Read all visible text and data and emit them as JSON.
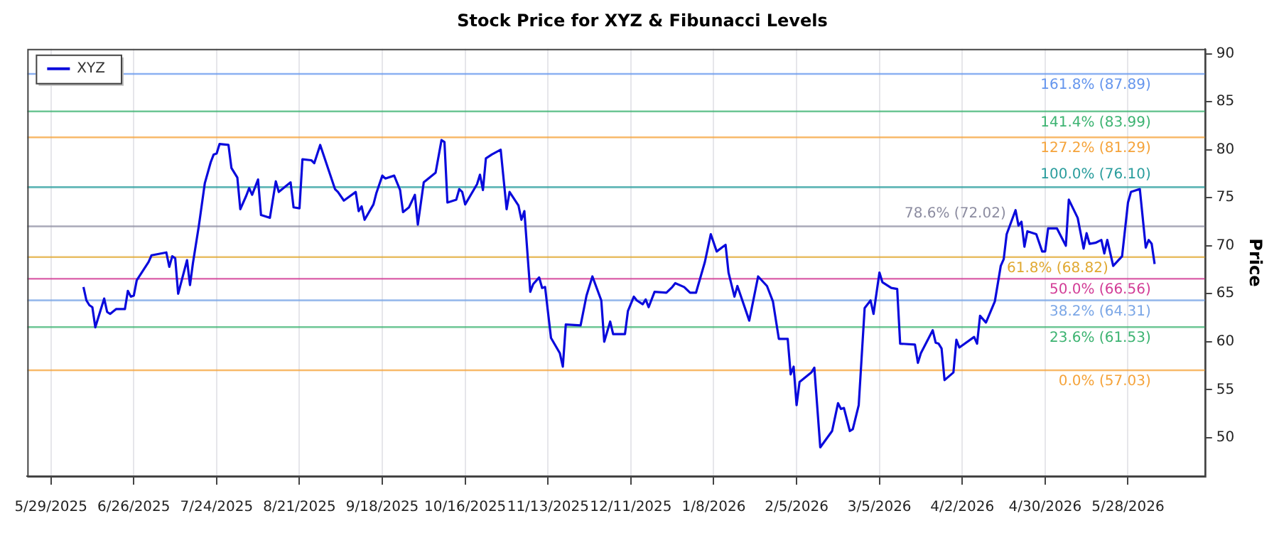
{
  "chart_data": {
    "type": "line",
    "title": "Stock Price for XYZ & Fibunacci Levels",
    "ylabel": "Price",
    "xlim": [
      "2025-05-21",
      "2026-06-23"
    ],
    "xticks": [
      {
        "value": "2025-05-29",
        "label": "5/29/2025"
      },
      {
        "value": "2025-06-26",
        "label": "6/26/2025"
      },
      {
        "value": "2025-07-24",
        "label": "7/24/2025"
      },
      {
        "value": "2025-08-21",
        "label": "8/21/2025"
      },
      {
        "value": "2025-09-18",
        "label": "9/18/2025"
      },
      {
        "value": "2025-10-16",
        "label": "10/16/2025"
      },
      {
        "value": "2025-11-13",
        "label": "11/13/2025"
      },
      {
        "value": "2025-12-11",
        "label": "12/11/2025"
      },
      {
        "value": "2026-01-08",
        "label": "1/8/2026"
      },
      {
        "value": "2026-02-05",
        "label": "2/5/2026"
      },
      {
        "value": "2026-03-05",
        "label": "3/5/2026"
      },
      {
        "value": "2026-04-02",
        "label": "4/2/2026"
      },
      {
        "value": "2026-04-30",
        "label": "4/30/2026"
      },
      {
        "value": "2026-05-28",
        "label": "5/28/2026"
      }
    ],
    "ylim": [
      46,
      90.5
    ],
    "yticks": [
      50,
      55,
      60,
      65,
      70,
      75,
      80,
      85,
      90
    ],
    "grid": "x",
    "legend": "top left",
    "marker": "none",
    "line_style": "solid",
    "x": [
      "2025-06-09",
      "2025-06-10",
      "2025-06-11",
      "2025-06-12",
      "2025-06-13",
      "2025-06-16",
      "2025-06-17",
      "2025-06-18",
      "2025-06-20",
      "2025-06-23",
      "2025-06-24",
      "2025-06-25",
      "2025-06-26",
      "2025-06-27",
      "2025-07-01",
      "2025-07-02",
      "2025-07-07",
      "2025-07-08",
      "2025-07-09",
      "2025-07-10",
      "2025-07-11",
      "2025-07-14",
      "2025-07-15",
      "2025-07-16",
      "2025-07-18",
      "2025-07-20",
      "2025-07-22",
      "2025-07-23",
      "2025-07-24",
      "2025-07-25",
      "2025-07-28",
      "2025-07-29",
      "2025-07-31",
      "2025-08-01",
      "2025-08-03",
      "2025-08-04",
      "2025-08-05",
      "2025-08-07",
      "2025-08-08",
      "2025-08-11",
      "2025-08-13",
      "2025-08-14",
      "2025-08-18",
      "2025-08-19",
      "2025-08-21",
      "2025-08-22",
      "2025-08-25",
      "2025-08-26",
      "2025-08-28",
      "2025-09-02",
      "2025-09-03",
      "2025-09-05",
      "2025-09-09",
      "2025-09-10",
      "2025-09-11",
      "2025-09-12",
      "2025-09-15",
      "2025-09-16",
      "2025-09-18",
      "2025-09-19",
      "2025-09-22",
      "2025-09-24",
      "2025-09-25",
      "2025-09-27",
      "2025-09-29",
      "2025-09-30",
      "2025-10-02",
      "2025-10-06",
      "2025-10-08",
      "2025-10-09",
      "2025-10-10",
      "2025-10-13",
      "2025-10-14",
      "2025-10-15",
      "2025-10-16",
      "2025-10-20",
      "2025-10-21",
      "2025-10-22",
      "2025-10-23",
      "2025-10-25",
      "2025-10-28",
      "2025-10-30",
      "2025-10-31",
      "2025-11-03",
      "2025-11-04",
      "2025-11-05",
      "2025-11-07",
      "2025-11-08",
      "2025-11-10",
      "2025-11-11",
      "2025-11-12",
      "2025-11-14",
      "2025-11-17",
      "2025-11-18",
      "2025-11-19",
      "2025-11-24",
      "2025-11-26",
      "2025-11-28",
      "2025-12-01",
      "2025-12-02",
      "2025-12-04",
      "2025-12-05",
      "2025-12-09",
      "2025-12-10",
      "2025-12-12",
      "2025-12-13",
      "2025-12-15",
      "2025-12-16",
      "2025-12-17",
      "2025-12-19",
      "2025-12-23",
      "2025-12-25",
      "2025-12-26",
      "2025-12-29",
      "2025-12-31",
      "2026-01-02",
      "2026-01-05",
      "2026-01-07",
      "2026-01-09",
      "2026-01-12",
      "2026-01-13",
      "2026-01-15",
      "2026-01-16",
      "2026-01-20",
      "2026-01-23",
      "2026-01-26",
      "2026-01-28",
      "2026-01-30",
      "2026-02-02",
      "2026-02-03",
      "2026-02-04",
      "2026-02-05",
      "2026-02-06",
      "2026-02-10",
      "2026-02-11",
      "2026-02-13",
      "2026-02-17",
      "2026-02-19",
      "2026-02-20",
      "2026-02-21",
      "2026-02-23",
      "2026-02-24",
      "2026-02-26",
      "2026-02-28",
      "2026-03-02",
      "2026-03-03",
      "2026-03-05",
      "2026-03-06",
      "2026-03-09",
      "2026-03-11",
      "2026-03-12",
      "2026-03-17",
      "2026-03-18",
      "2026-03-19",
      "2026-03-23",
      "2026-03-24",
      "2026-03-25",
      "2026-03-26",
      "2026-03-27",
      "2026-03-30",
      "2026-03-31",
      "2026-04-01",
      "2026-04-06",
      "2026-04-07",
      "2026-04-08",
      "2026-04-10",
      "2026-04-13",
      "2026-04-15",
      "2026-04-16",
      "2026-04-17",
      "2026-04-20",
      "2026-04-21",
      "2026-04-22",
      "2026-04-23",
      "2026-04-24",
      "2026-04-27",
      "2026-04-29",
      "2026-04-30",
      "2026-05-01",
      "2026-05-04",
      "2026-05-07",
      "2026-05-08",
      "2026-05-11",
      "2026-05-13",
      "2026-05-14",
      "2026-05-15",
      "2026-05-17",
      "2026-05-19",
      "2026-05-20",
      "2026-05-21",
      "2026-05-23",
      "2026-05-26",
      "2026-05-28",
      "2026-05-29",
      "2026-06-01",
      "2026-06-03",
      "2026-06-04",
      "2026-06-05",
      "2026-06-06"
    ],
    "series": [
      {
        "name": "XYZ",
        "color": "#0a0adc",
        "values": [
          65.7,
          64.3,
          63.8,
          63.6,
          61.5,
          64.5,
          63.1,
          62.9,
          63.4,
          63.4,
          65.3,
          64.7,
          64.8,
          66.4,
          68.3,
          69.0,
          69.3,
          67.8,
          68.9,
          68.7,
          65.0,
          68.5,
          65.9,
          68.2,
          72.1,
          76.5,
          78.7,
          79.5,
          79.6,
          80.6,
          80.5,
          78.1,
          77.1,
          73.8,
          75.2,
          76.0,
          75.3,
          76.9,
          73.2,
          72.9,
          76.7,
          75.6,
          76.6,
          74.0,
          73.9,
          79.0,
          78.9,
          78.6,
          80.5,
          75.9,
          75.6,
          74.7,
          75.6,
          73.6,
          74.1,
          72.7,
          74.3,
          75.5,
          77.3,
          77.0,
          77.3,
          75.8,
          73.5,
          74.0,
          75.3,
          72.2,
          76.6,
          77.6,
          81.0,
          80.8,
          74.5,
          74.8,
          75.9,
          75.6,
          74.3,
          76.4,
          77.4,
          75.8,
          79.1,
          79.5,
          80.0,
          73.8,
          75.6,
          74.2,
          72.7,
          73.6,
          65.2,
          66.0,
          66.7,
          65.6,
          65.7,
          60.4,
          58.8,
          57.4,
          61.8,
          61.7,
          64.8,
          66.8,
          64.3,
          60.0,
          62.1,
          60.8,
          60.8,
          63.2,
          64.7,
          64.3,
          63.9,
          64.4,
          63.6,
          65.2,
          65.1,
          65.7,
          66.1,
          65.7,
          65.1,
          65.1,
          68.3,
          71.2,
          69.4,
          70.1,
          67.2,
          64.7,
          65.8,
          62.2,
          66.8,
          65.8,
          64.2,
          60.3,
          60.3,
          56.6,
          57.4,
          53.4,
          55.8,
          56.8,
          57.3,
          49.0,
          50.7,
          53.6,
          53.0,
          53.1,
          50.7,
          50.9,
          53.4,
          63.5,
          64.3,
          62.9,
          67.2,
          66.2,
          65.6,
          65.5,
          59.8,
          59.7,
          57.8,
          58.8,
          61.2,
          59.9,
          59.8,
          59.3,
          56.0,
          56.8,
          60.2,
          59.4,
          60.5,
          59.8,
          62.7,
          62.0,
          64.2,
          67.9,
          68.6,
          71.2,
          73.7,
          72.1,
          72.5,
          69.9,
          71.5,
          71.2,
          69.4,
          69.4,
          71.8,
          71.8,
          70.0,
          74.8,
          72.9,
          69.7,
          71.3,
          70.2,
          70.3,
          70.6,
          69.2,
          70.6,
          67.9,
          68.9,
          74.5,
          75.6,
          75.9,
          69.8,
          70.6,
          70.2,
          68.1
        ]
      }
    ],
    "ref_lines": [
      {
        "axis": "y",
        "value": 87.89,
        "label": "161.8% (87.89)",
        "color": "#6495ed"
      },
      {
        "axis": "y",
        "value": 83.99,
        "label": "141.4% (83.99)",
        "color": "#3cb371"
      },
      {
        "axis": "y",
        "value": 81.29,
        "label": "127.2% (81.29)",
        "color": "#f5a33a"
      },
      {
        "axis": "y",
        "value": 76.1,
        "label": "100.0% (76.10)",
        "color": "#2a9d9d"
      },
      {
        "axis": "y",
        "value": 72.02,
        "label": "78.6% (72.02)",
        "color": "#8c8ca0"
      },
      {
        "axis": "y",
        "value": 68.82,
        "label": "61.8% (68.82)",
        "color": "#e0a830"
      },
      {
        "axis": "y",
        "value": 66.56,
        "label": "50.0% (66.56)",
        "color": "#d23c96"
      },
      {
        "axis": "y",
        "value": 64.31,
        "label": "38.2% (64.31)",
        "color": "#7aa6e6"
      },
      {
        "axis": "y",
        "value": 61.53,
        "label": "23.6% (61.53)",
        "color": "#3cb371"
      },
      {
        "axis": "y",
        "value": 57.03,
        "label": "0.0% (57.03)",
        "color": "#f5a33a"
      }
    ]
  }
}
